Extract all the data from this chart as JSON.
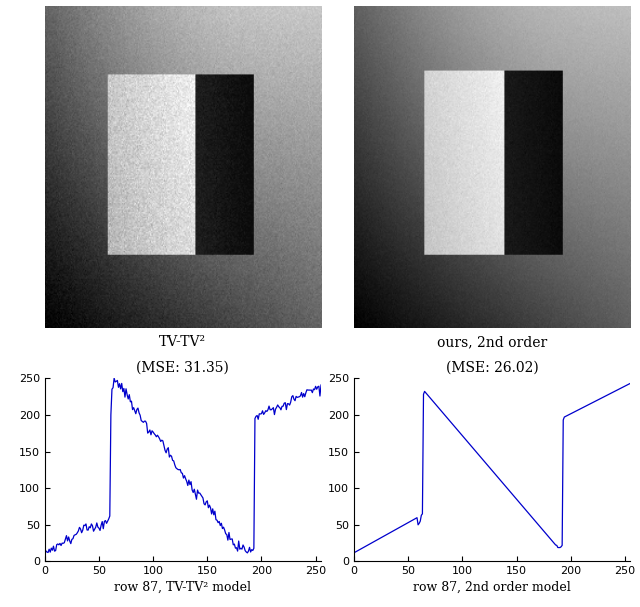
{
  "title_left": "TV-TV²",
  "title_left2": "(MSE: 31.35)",
  "title_right": "ours, 2nd order",
  "title_right2": "(MSE: 26.02)",
  "xlabel_left": "row 87, TV-TV² model",
  "xlabel_right": "row 87, 2nd order model",
  "line_color": "#0000cc",
  "xlim": [
    0,
    255
  ],
  "ylim": [
    0,
    250
  ],
  "xticks": [
    0,
    50,
    100,
    150,
    200,
    250
  ],
  "yticks": [
    0,
    50,
    100,
    150,
    200,
    250
  ],
  "img_size": 256,
  "fig_width": 6.4,
  "fig_height": 6.07
}
